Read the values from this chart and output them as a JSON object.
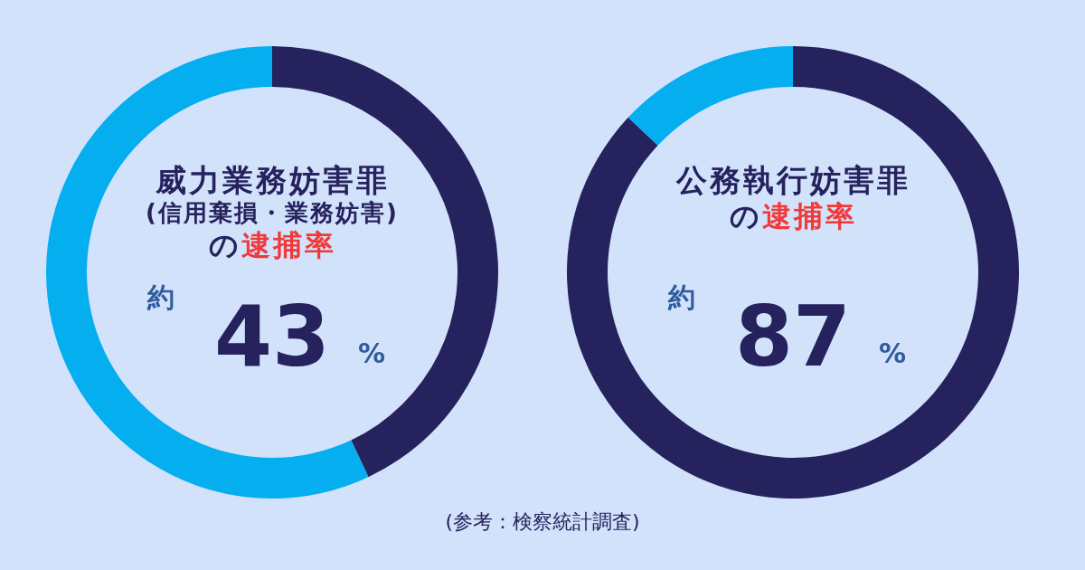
{
  "chart_data": [
    {
      "type": "donut",
      "title": "威力業務妨害罪\n(信用棄損・業務妨害)",
      "subtitle": "の逮捕率",
      "categories": [
        null,
        null
      ],
      "values": [
        43,
        57
      ],
      "colors": [
        "#25225e",
        "#05aeef"
      ],
      "value_labels": [
        "約 43 %",
        null
      ],
      "annotations": [
        "(参考：検察統計調査)"
      ]
    },
    {
      "type": "donut",
      "title": "公務執行妨害罪",
      "subtitle": "の逮捕率",
      "categories": [
        null,
        null
      ],
      "values": [
        87,
        13
      ],
      "colors": [
        "#25225e",
        "#05aeef"
      ],
      "value_labels": [
        "約 87 %",
        null
      ]
    }
  ]
}
